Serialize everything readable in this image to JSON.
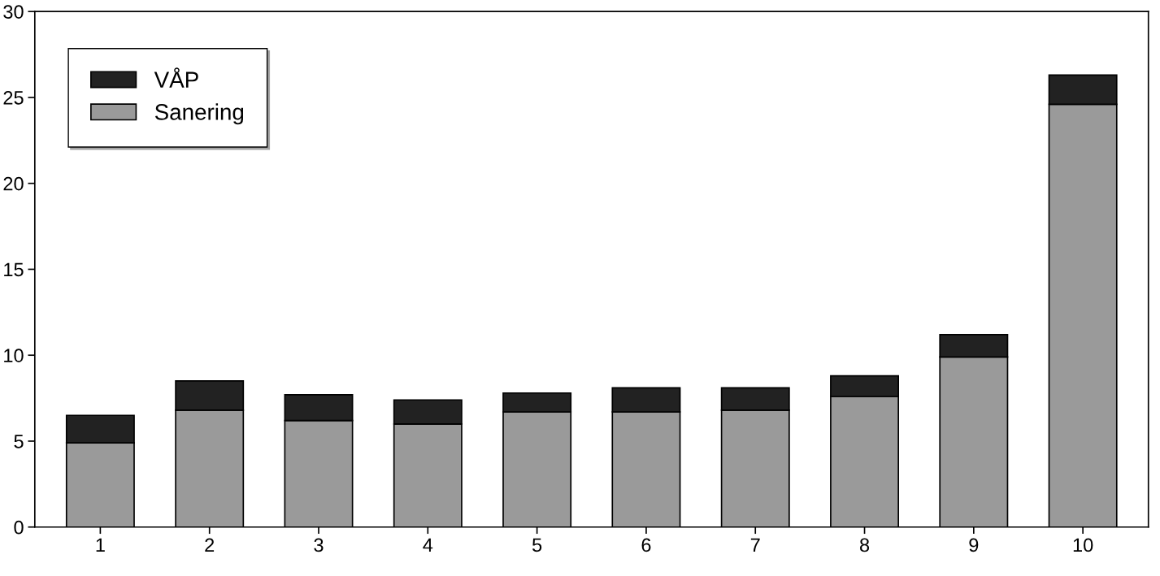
{
  "chart_data": {
    "type": "bar",
    "stacked": true,
    "categories": [
      "1",
      "2",
      "3",
      "4",
      "5",
      "6",
      "7",
      "8",
      "9",
      "10"
    ],
    "series": [
      {
        "name": "Sanering",
        "color": "#9a9a9a",
        "values": [
          4.9,
          6.8,
          6.2,
          6.0,
          6.7,
          6.7,
          6.8,
          7.6,
          9.9,
          24.6
        ]
      },
      {
        "name": "VÅP",
        "color": "#222222",
        "values": [
          1.6,
          1.7,
          1.5,
          1.4,
          1.1,
          1.4,
          1.3,
          1.2,
          1.3,
          1.7
        ]
      }
    ],
    "ylim": [
      0,
      30
    ],
    "yticks": [
      0,
      5,
      10,
      15,
      20,
      25,
      30
    ],
    "grid": false,
    "legend": "top left"
  }
}
